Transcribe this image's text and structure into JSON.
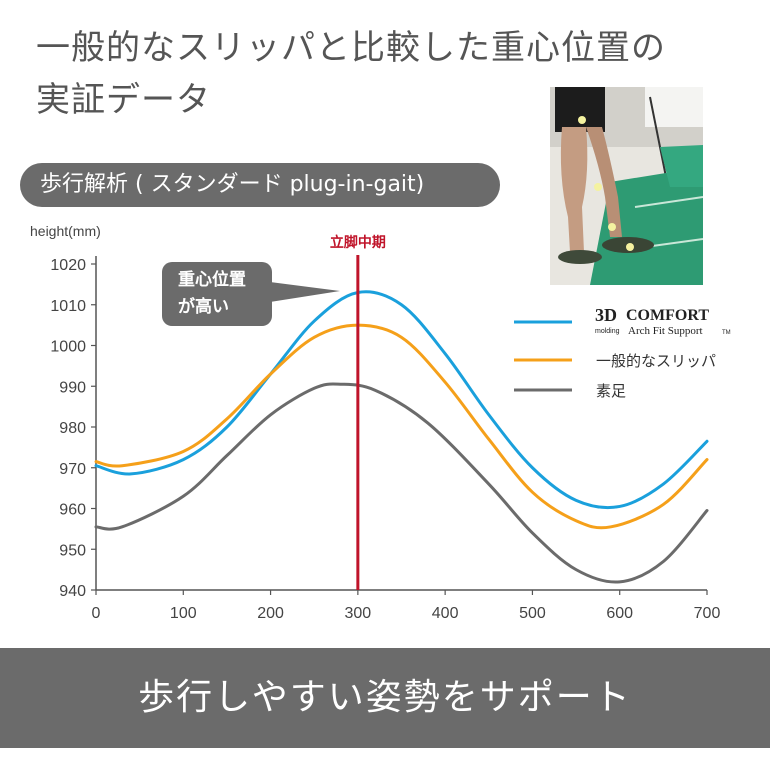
{
  "heading": {
    "line1": "一般的なスリッパと比較した重心位置の",
    "line2": "実証データ"
  },
  "badge": {
    "label": "歩行解析 ( スタンダード plug-in-gait)"
  },
  "footer": {
    "text": "歩行しやすい姿勢をサポート"
  },
  "chart_data": {
    "type": "line",
    "ylabel": "height(mm)",
    "xlabel": "",
    "xlim": [
      0,
      700
    ],
    "ylim": [
      940,
      1020
    ],
    "xticks": [
      "0",
      "100",
      "200",
      "300",
      "400",
      "500",
      "600",
      "700"
    ],
    "yticks": [
      "940",
      "950",
      "960",
      "970",
      "980",
      "990",
      "1000",
      "1010",
      "1020"
    ],
    "marker": {
      "x": 300,
      "label": "立脚中期",
      "color": "#c0142a"
    },
    "callout": {
      "line1": "重心位置",
      "line2": "が高い"
    },
    "legend": {
      "brand_big": "3D",
      "brand_word": "COMFORT",
      "brand_small": "molding",
      "brand_sub": "Arch Fit Support",
      "brand_tm": "TM",
      "placement": "right"
    },
    "series": [
      {
        "name": "",
        "color": "#1aa0dc",
        "x": [
          0,
          40,
          100,
          150,
          200,
          250,
          300,
          350,
          400,
          450,
          500,
          550,
          600,
          650,
          700
        ],
        "y": [
          970.5,
          968.5,
          972,
          980,
          993,
          1006,
          1013,
          1010,
          998,
          983,
          970,
          962,
          960.5,
          966,
          976.5
        ]
      },
      {
        "name": "一般的なスリッパ",
        "color": "#f5a01a",
        "x": [
          0,
          30,
          100,
          150,
          200,
          250,
          300,
          350,
          400,
          450,
          500,
          550,
          590,
          650,
          700
        ],
        "y": [
          971.5,
          970.5,
          974,
          982,
          993,
          1002,
          1005,
          1002,
          991,
          977,
          964,
          957,
          955.5,
          961,
          972
        ]
      },
      {
        "name": "素足",
        "color": "#6b6b6b",
        "x": [
          0,
          30,
          100,
          150,
          200,
          250,
          280,
          320,
          380,
          450,
          500,
          550,
          600,
          650,
          700
        ],
        "y": [
          955.5,
          955.5,
          963,
          973,
          983,
          989.5,
          990.5,
          989,
          981,
          966,
          954,
          945,
          942,
          947,
          959.5
        ]
      }
    ]
  }
}
